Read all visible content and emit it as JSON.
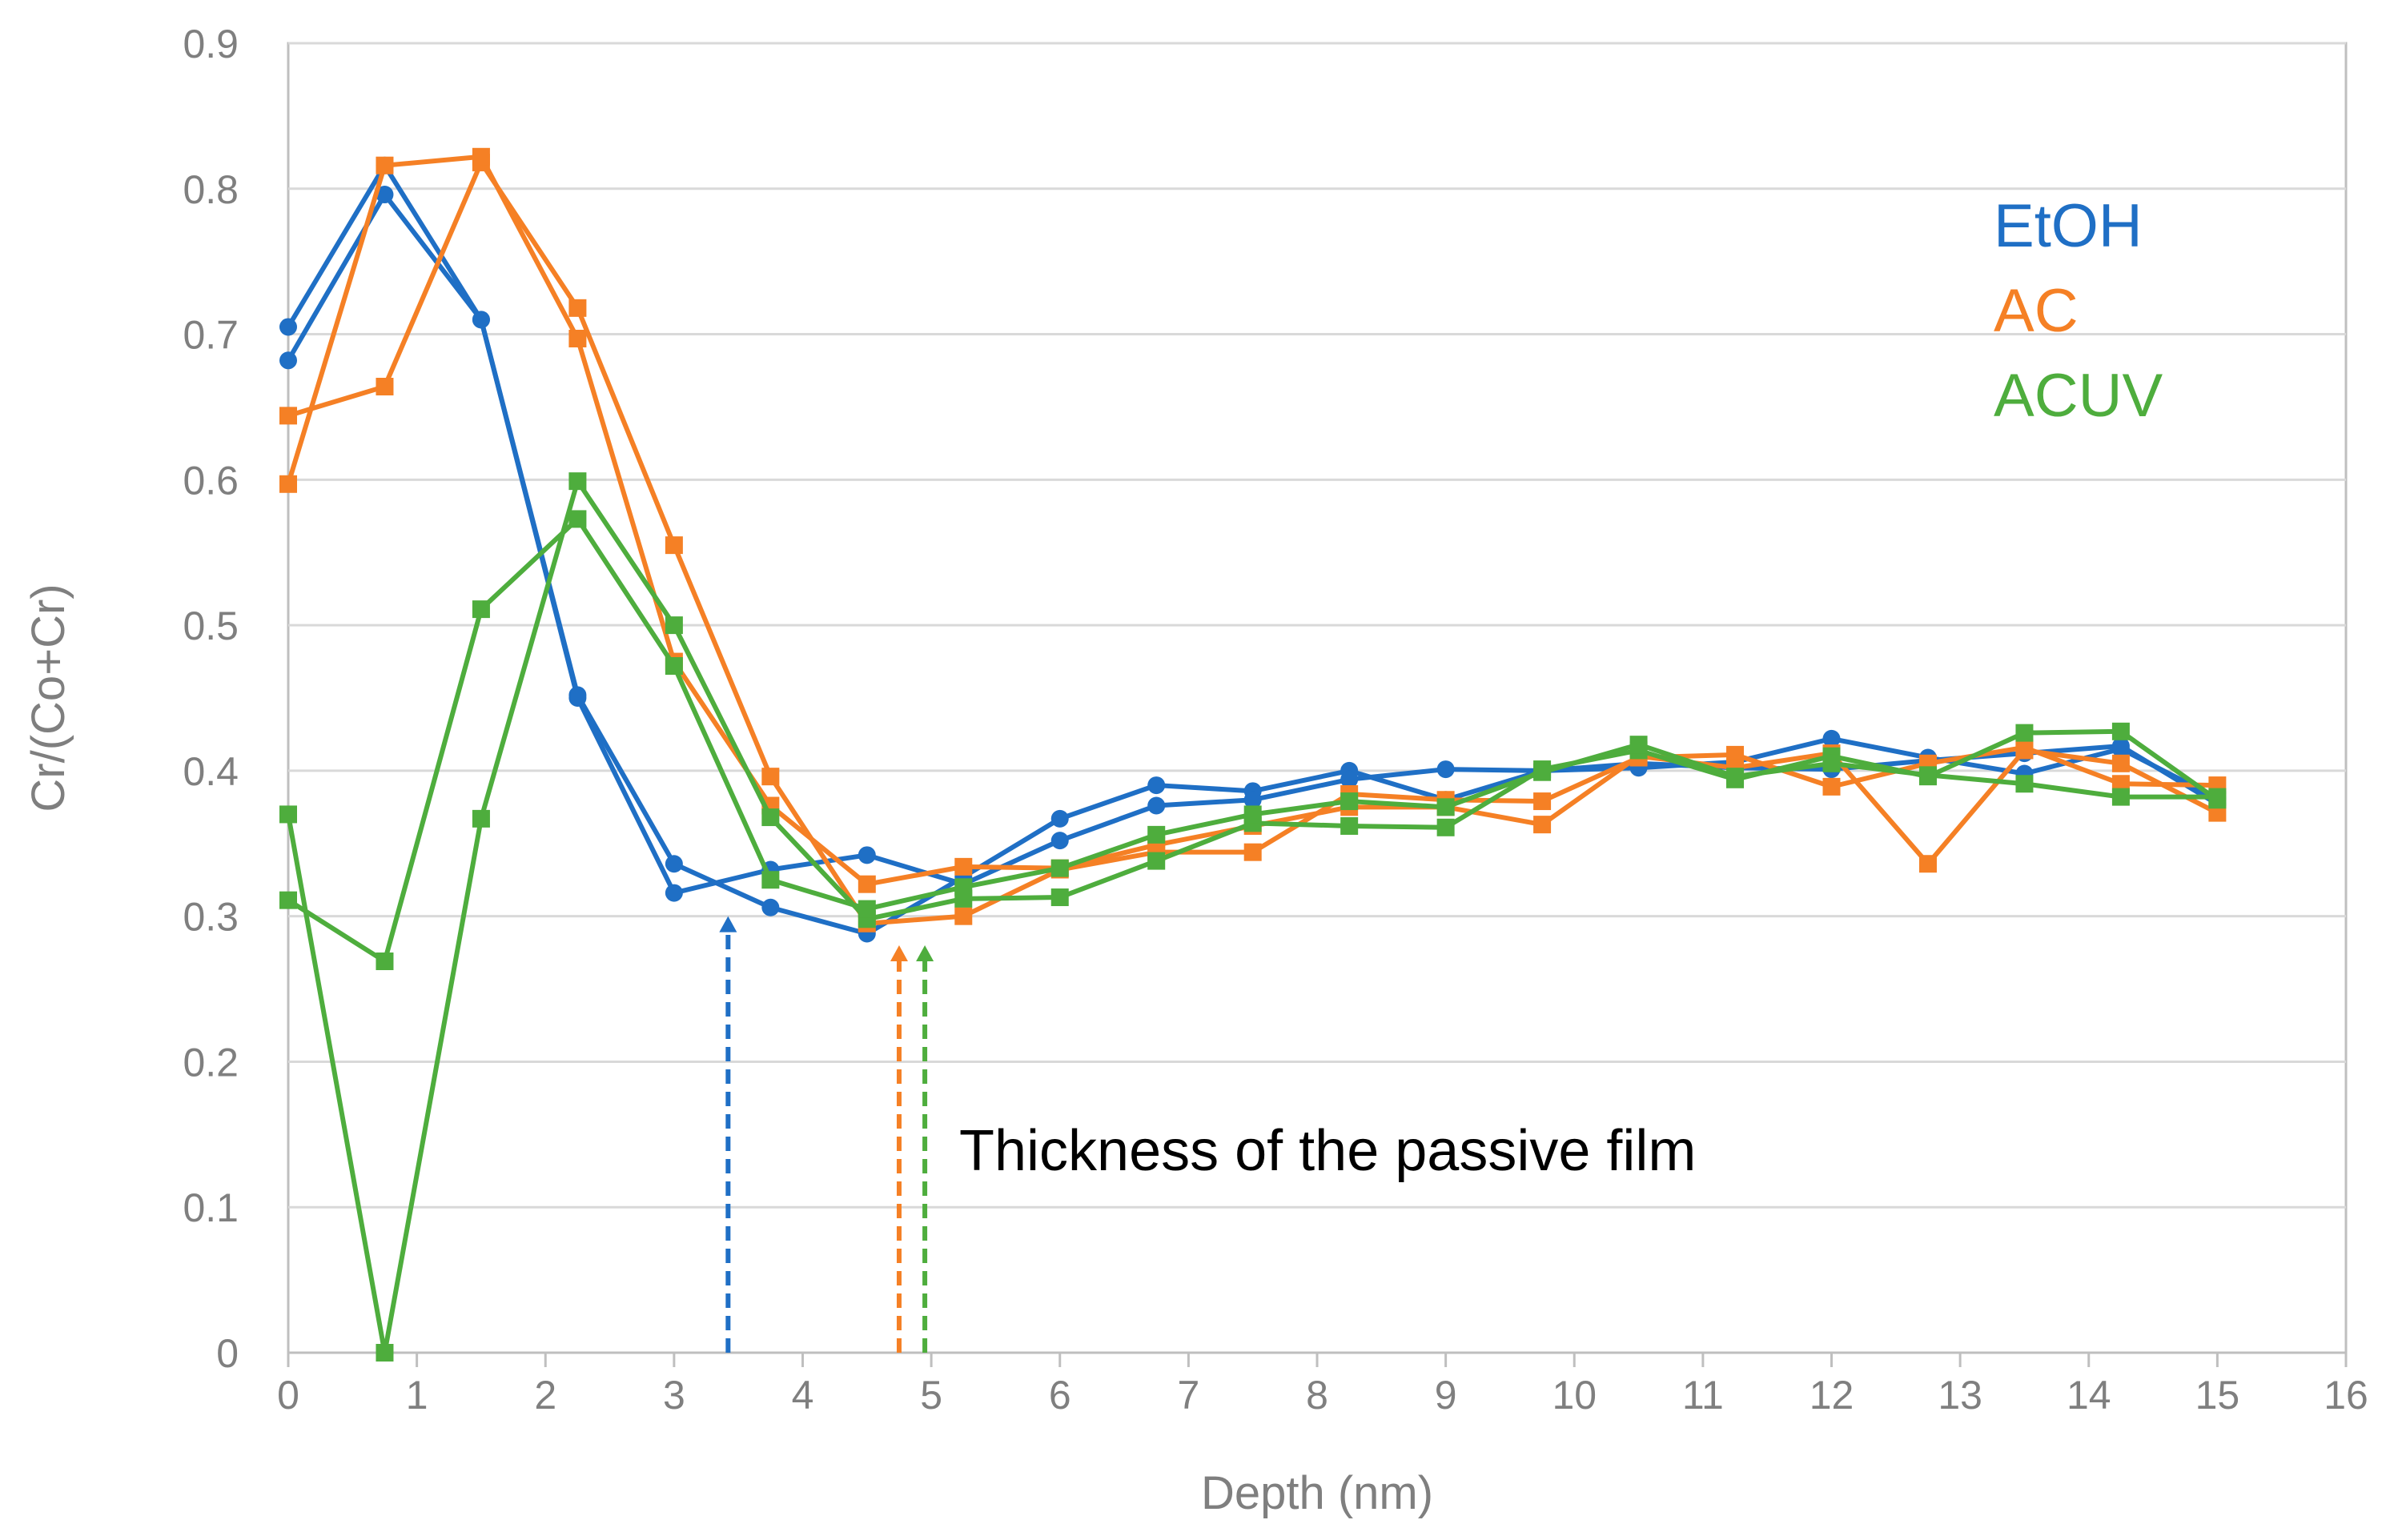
{
  "chart_data": {
    "type": "line",
    "title": "",
    "xlabel": "Depth (nm)",
    "ylabel": "Cr/(Co+Cr)",
    "xlim": [
      0,
      16
    ],
    "ylim": [
      0,
      0.9
    ],
    "xticks": [
      0,
      1,
      2,
      3,
      4,
      5,
      6,
      7,
      8,
      9,
      10,
      11,
      12,
      13,
      14,
      15,
      16
    ],
    "xtick_labels": [
      "0",
      "1",
      "2",
      "3",
      "4",
      "5",
      "6",
      "7",
      "8",
      "9",
      "10",
      "11",
      "12",
      "13",
      "14",
      "15",
      "16"
    ],
    "yticks": [
      0,
      0.1,
      0.2,
      0.3,
      0.4,
      0.5,
      0.6,
      0.7,
      0.8,
      0.9
    ],
    "ytick_labels": [
      "0",
      "0.1",
      "0.2",
      "0.3",
      "0.4",
      "0.5",
      "0.6",
      "0.7",
      "0.8",
      "0.9"
    ],
    "grid": "horizontal",
    "legend": {
      "position": "right",
      "entries": [
        {
          "label": "EtOH",
          "color": "#1f6fc5"
        },
        {
          "label": "AC",
          "color": "#f58025"
        },
        {
          "label": "ACUV",
          "color": "#4ead3d"
        }
      ]
    },
    "x": [
      0,
      0.75,
      1.5,
      2.25,
      3,
      3.75,
      4.5,
      5.25,
      6,
      6.75,
      7.5,
      8.25,
      9,
      9.75,
      10.5,
      11.25,
      12,
      12.75,
      13.5,
      14.25,
      15
    ],
    "series": [
      {
        "name": "EtOH run 1",
        "group": "EtOH",
        "marker": "circle",
        "color": "#1f6fc5",
        "values": [
          0.705,
          0.816,
          0.71,
          0.452,
          0.336,
          0.306,
          0.288,
          0.327,
          0.367,
          0.39,
          0.386,
          0.4,
          0.38,
          0.4,
          0.402,
          0.406,
          0.422,
          0.409,
          0.398,
          0.415,
          0.381
        ]
      },
      {
        "name": "EtOH run 2",
        "group": "EtOH",
        "marker": "circle",
        "color": "#1f6fc5",
        "values": [
          0.682,
          0.796,
          0.71,
          0.45,
          0.316,
          0.332,
          0.342,
          0.322,
          0.352,
          0.376,
          0.38,
          0.394,
          0.401,
          0.4,
          0.405,
          0.402,
          0.401,
          0.407,
          0.412,
          0.417,
          0.377
        ]
      },
      {
        "name": "AC run 1",
        "group": "AC",
        "marker": "square",
        "color": "#f58025",
        "values": [
          0.644,
          0.664,
          0.818,
          0.718,
          0.555,
          0.396,
          0.295,
          0.3,
          0.332,
          0.344,
          0.344,
          0.384,
          0.38,
          0.379,
          0.409,
          0.411,
          0.389,
          0.405,
          0.416,
          0.391,
          0.39
        ]
      },
      {
        "name": "AC run 2",
        "group": "AC",
        "marker": "square",
        "color": "#f58025",
        "values": [
          0.597,
          0.816,
          0.822,
          0.697,
          0.475,
          0.376,
          0.322,
          0.334,
          0.333,
          0.349,
          0.362,
          0.375,
          0.375,
          0.363,
          0.41,
          0.402,
          0.412,
          0.336,
          0.414,
          0.405,
          0.371
        ]
      },
      {
        "name": "ACUV run 1",
        "group": "ACUV",
        "marker": "square",
        "color": "#4ead3d",
        "values": [
          0.37,
          0.0,
          0.367,
          0.599,
          0.5,
          0.368,
          0.298,
          0.312,
          0.313,
          0.338,
          0.364,
          0.362,
          0.361,
          0.401,
          0.414,
          0.394,
          0.41,
          0.396,
          0.426,
          0.427,
          0.38
        ]
      },
      {
        "name": "ACUV run 2",
        "group": "ACUV",
        "marker": "square",
        "color": "#4ead3d",
        "values": [
          0.311,
          0.269,
          0.511,
          0.573,
          0.472,
          0.325,
          0.305,
          0.32,
          0.333,
          0.356,
          0.37,
          0.379,
          0.375,
          0.399,
          0.418,
          0.396,
          0.405,
          0.397,
          0.391,
          0.382,
          0.382
        ]
      }
    ],
    "markers": [
      {
        "name": "EtOH film thickness",
        "x": 3.42,
        "color": "#1f6fc5",
        "style": "dashed-arrow",
        "top_y": 0.3
      },
      {
        "name": "AC film thickness",
        "x": 4.75,
        "color": "#f58025",
        "style": "dashed-arrow",
        "top_y": 0.28
      },
      {
        "name": "ACUV film thickness",
        "x": 4.95,
        "color": "#4ead3d",
        "style": "dashed-arrow",
        "top_y": 0.28
      }
    ],
    "annotations": [
      {
        "text": "Thickness of the passive film",
        "x": 5.25,
        "y": 0.14
      }
    ],
    "styles": {
      "grid_color": "#d9d9d9",
      "axis_color": "#bfbfbf",
      "border_color": "#bfbfbf",
      "text_color": "#7f7f7f"
    }
  }
}
